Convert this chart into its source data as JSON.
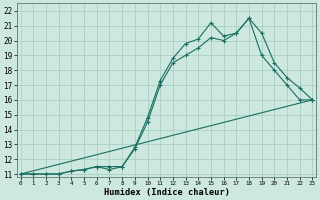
{
  "xlabel": "Humidex (Indice chaleur)",
  "bg_color": "#cce8df",
  "grid_color": "#aacfc5",
  "line_color": "#1a6e60",
  "xlim": [
    -0.3,
    23.3
  ],
  "ylim": [
    10.8,
    22.5
  ],
  "xticks": [
    0,
    1,
    2,
    3,
    4,
    5,
    6,
    7,
    8,
    9,
    10,
    11,
    12,
    13,
    14,
    15,
    16,
    17,
    18,
    19,
    20,
    21,
    22,
    23
  ],
  "yticks": [
    11,
    12,
    13,
    14,
    15,
    16,
    17,
    18,
    19,
    20,
    21,
    22
  ],
  "line1_x": [
    0,
    1,
    2,
    3,
    4,
    5,
    6,
    7,
    8,
    9,
    10,
    11,
    12,
    13,
    14,
    15,
    16,
    17,
    18,
    19,
    20,
    21,
    22,
    23
  ],
  "line1_y": [
    11.0,
    11.0,
    11.0,
    11.0,
    11.2,
    11.3,
    11.5,
    11.5,
    11.5,
    12.7,
    14.5,
    17.0,
    18.5,
    19.0,
    19.5,
    20.2,
    20.0,
    20.5,
    21.5,
    19.0,
    18.0,
    17.0,
    16.0,
    16.0
  ],
  "line2_x": [
    0,
    1,
    2,
    3,
    4,
    5,
    6,
    7,
    8,
    9,
    10,
    11,
    12,
    13,
    14,
    15,
    16,
    17,
    18,
    19,
    20,
    21,
    22,
    23
  ],
  "line2_y": [
    11.0,
    11.0,
    11.0,
    11.0,
    11.2,
    11.3,
    11.5,
    11.3,
    11.5,
    12.8,
    14.8,
    17.3,
    18.8,
    19.8,
    20.1,
    21.2,
    20.3,
    20.5,
    21.5,
    20.5,
    18.5,
    17.5,
    16.8,
    16.0
  ],
  "line3_x": [
    0,
    23
  ],
  "line3_y": [
    11.0,
    16.0
  ],
  "xtick_fontsize": 4.2,
  "ytick_fontsize": 5.5,
  "xlabel_fontsize": 6.2,
  "lw": 0.8,
  "ms": 2.5
}
